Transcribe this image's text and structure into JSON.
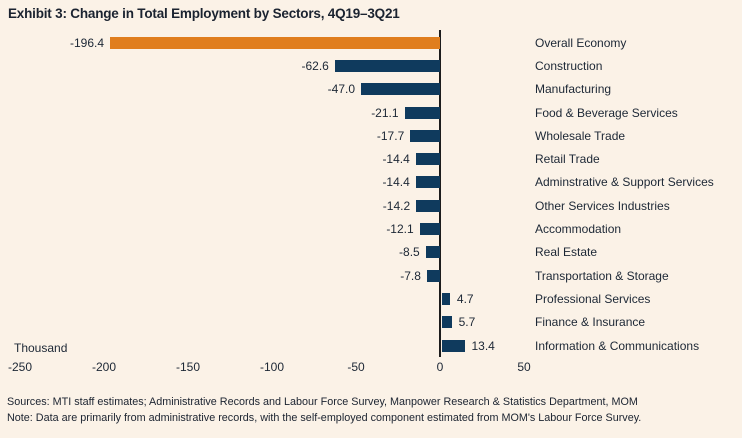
{
  "title": "Exhibit 3: Change in Total Employment by Sectors, 4Q19–3Q21",
  "axis_unit_label": "Thousand",
  "footer": {
    "sources": "Sources: MTI staff estimates; Administrative Records and Labour Force Survey, Manpower Research & Statistics Department, MOM",
    "note": "Note: Data are primarily from administrative records, with the self-employed component estimated from MOM's Labour Force Survey."
  },
  "colors": {
    "background": "#FBF2E7",
    "highlight_bar": "#E07E1E",
    "bar": "#0F3A5D",
    "text": "#1C2735",
    "axis_line": "#1C1C1C"
  },
  "chart_data": {
    "type": "bar",
    "orientation": "horizontal",
    "title": "Exhibit 3: Change in Total Employment by Sectors, 4Q19–3Q21",
    "xlabel": "Thousand",
    "xlim": [
      -250,
      50
    ],
    "x_ticks": [
      "-250",
      "-200",
      "-150",
      "-100",
      "-50",
      "0",
      "50"
    ],
    "grid": false,
    "legend": null,
    "highlight_index": 0,
    "categories": [
      "Overall Economy",
      "Construction",
      "Manufacturing",
      "Food & Beverage Services",
      "Wholesale Trade",
      "Retail Trade",
      "Adminstrative & Support Services",
      "Other Services Industries",
      "Accommodation",
      "Real Estate",
      "Transportation & Storage",
      "Professional Services",
      "Finance & Insurance",
      "Information & Communications"
    ],
    "values": [
      -196.4,
      -62.6,
      -47.0,
      -21.1,
      -17.7,
      -14.4,
      -14.4,
      -14.2,
      -12.1,
      -8.5,
      -7.8,
      4.7,
      5.7,
      13.4
    ],
    "value_labels": [
      "-196.4",
      "-62.6",
      "-47.0",
      "-21.1",
      "-17.7",
      "-14.4",
      "-14.4",
      "-14.2",
      "-12.1",
      "-8.5",
      "-7.8",
      "4.7",
      "5.7",
      "13.4"
    ]
  }
}
